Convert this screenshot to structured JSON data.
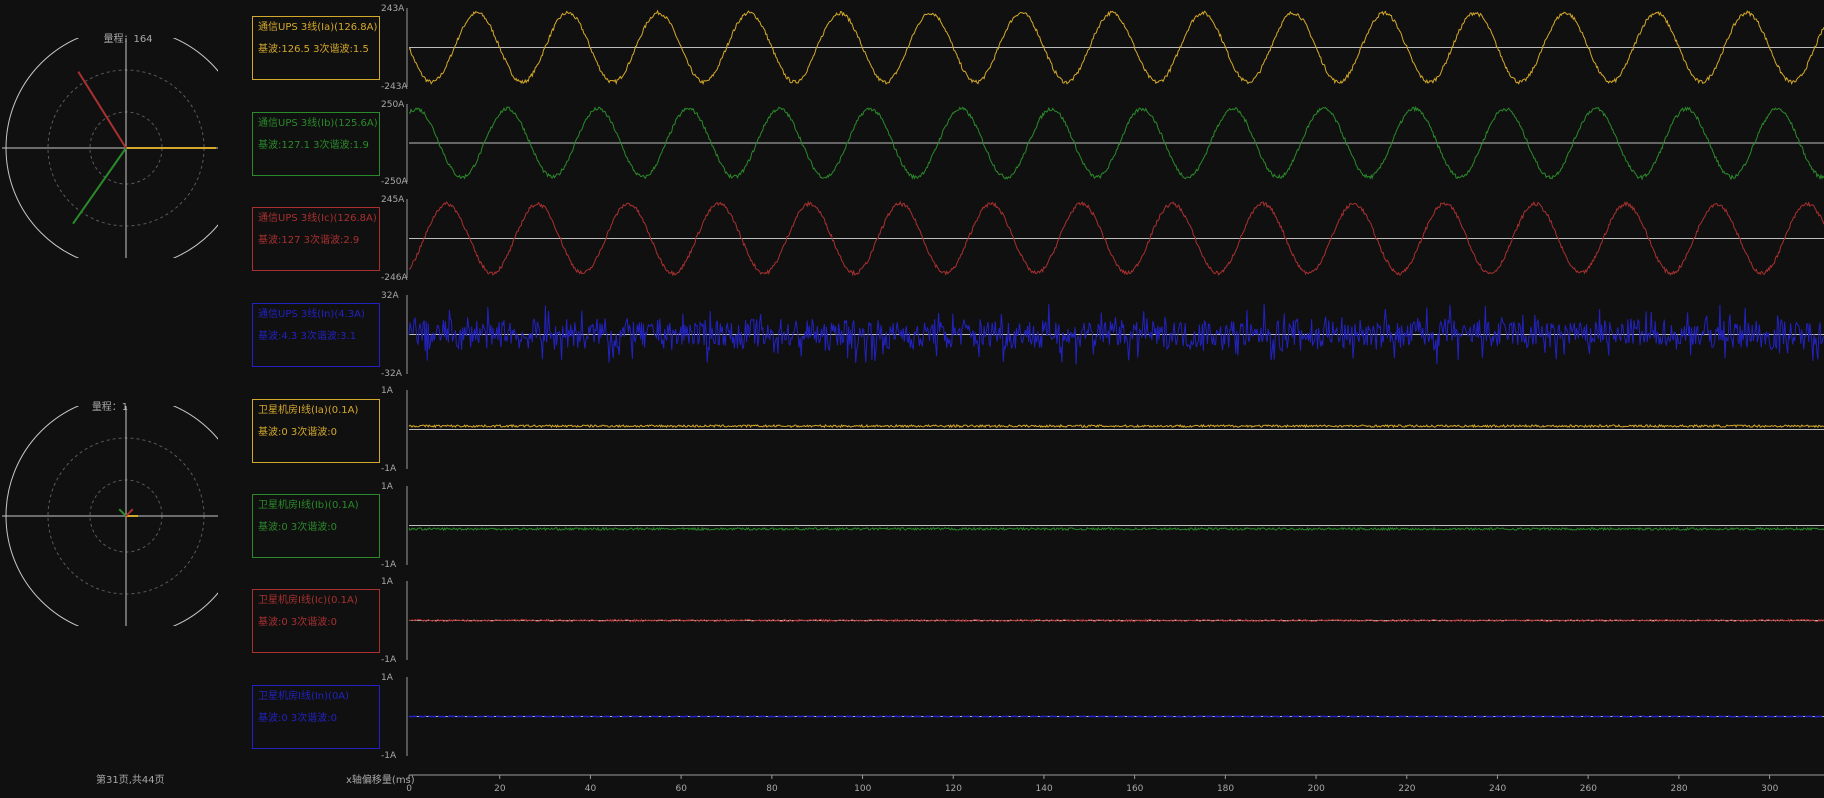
{
  "colors": {
    "Ia": "#d4a82a",
    "Ib": "#2a8a2a",
    "Ic": "#a83030",
    "In": "#2222c0",
    "axis": "#c8c8c8",
    "grid": "#5a5a5a",
    "bg": "#101010"
  },
  "phasors": [
    {
      "range_label": "量程：164",
      "vectors": [
        {
          "phase": "Ia",
          "magnitude": 0.75,
          "angle_deg": 0
        },
        {
          "phase": "Ib",
          "magnitude": 0.77,
          "angle_deg": 235
        },
        {
          "phase": "Ic",
          "magnitude": 0.75,
          "angle_deg": 122
        }
      ]
    },
    {
      "range_label": "量程：1",
      "vectors": [
        {
          "phase": "Ia",
          "magnitude": 0.1,
          "angle_deg": 0
        },
        {
          "phase": "Ib",
          "magnitude": 0.08,
          "angle_deg": 135
        },
        {
          "phase": "Ic",
          "magnitude": 0.08,
          "angle_deg": 45
        }
      ]
    }
  ],
  "channels": [
    {
      "id": "ch1",
      "phase": "Ia",
      "title": "通信UPS 3线(Ia)(126.8A)",
      "harmonics": "基波:126.5 3次谐波:1.5",
      "y_max_label": "243A",
      "y_min_label": "-243A",
      "kind": "sine",
      "amplitude": 0.9,
      "noise": 0.05
    },
    {
      "id": "ch2",
      "phase": "Ib",
      "title": "通信UPS 3线(Ib)(125.6A)",
      "harmonics": "基波:127.1 3次谐波:1.9",
      "y_max_label": "250A",
      "y_min_label": "-250A",
      "kind": "sine",
      "amplitude": 0.9,
      "noise": 0.05
    },
    {
      "id": "ch3",
      "phase": "Ic",
      "title": "通信UPS 3线(Ic)(126.8A)",
      "harmonics": "基波:127 3次谐波:2.9",
      "y_max_label": "245A",
      "y_min_label": "-246A",
      "kind": "sine",
      "amplitude": 0.9,
      "noise": 0.05
    },
    {
      "id": "ch4",
      "phase": "In",
      "title": "通信UPS 3线(In)(4.3A)",
      "harmonics": "基波:4.3 3次谐波:3.1",
      "y_max_label": "32A",
      "y_min_label": "-32A",
      "kind": "noise",
      "amplitude": 0.25,
      "noise": 0.35
    },
    {
      "id": "ch5",
      "phase": "Ia",
      "title": "卫星机房Ⅰ线(Ia)(0.1A)",
      "harmonics": "基波:0 3次谐波:0",
      "y_max_label": "1A",
      "y_min_label": "-1A",
      "kind": "flat",
      "amplitude": 0.0,
      "noise": 0.03
    },
    {
      "id": "ch6",
      "phase": "Ib",
      "title": "卫星机房Ⅰ线(Ib)(0.1A)",
      "harmonics": "基波:0 3次谐波:0",
      "y_max_label": "1A",
      "y_min_label": "-1A",
      "kind": "flat",
      "amplitude": 0.0,
      "noise": 0.03
    },
    {
      "id": "ch7",
      "phase": "Ic",
      "title": "卫星机房Ⅰ线(Ic)(0.1A)",
      "harmonics": "基波:0 3次谐波:0",
      "y_max_label": "1A",
      "y_min_label": "-1A",
      "kind": "flat",
      "amplitude": 0.0,
      "noise": 0.03
    },
    {
      "id": "ch8",
      "phase": "In",
      "title": "卫星机房Ⅰ线(In)(0A)",
      "harmonics": "基波:0 3次谐波:0",
      "y_max_label": "1A",
      "y_min_label": "-1A",
      "kind": "flat",
      "amplitude": 0.0,
      "noise": 0.008
    }
  ],
  "x_axis": {
    "label": "x轴偏移量(ms)",
    "ticks": [
      "0",
      "20",
      "40",
      "60",
      "80",
      "100",
      "120",
      "140",
      "160",
      "180",
      "200",
      "220",
      "240",
      "260",
      "280",
      "300"
    ],
    "range_ms": [
      0,
      312
    ],
    "period_ms": 20
  },
  "footer": {
    "page_info": "第31页,共44页"
  }
}
